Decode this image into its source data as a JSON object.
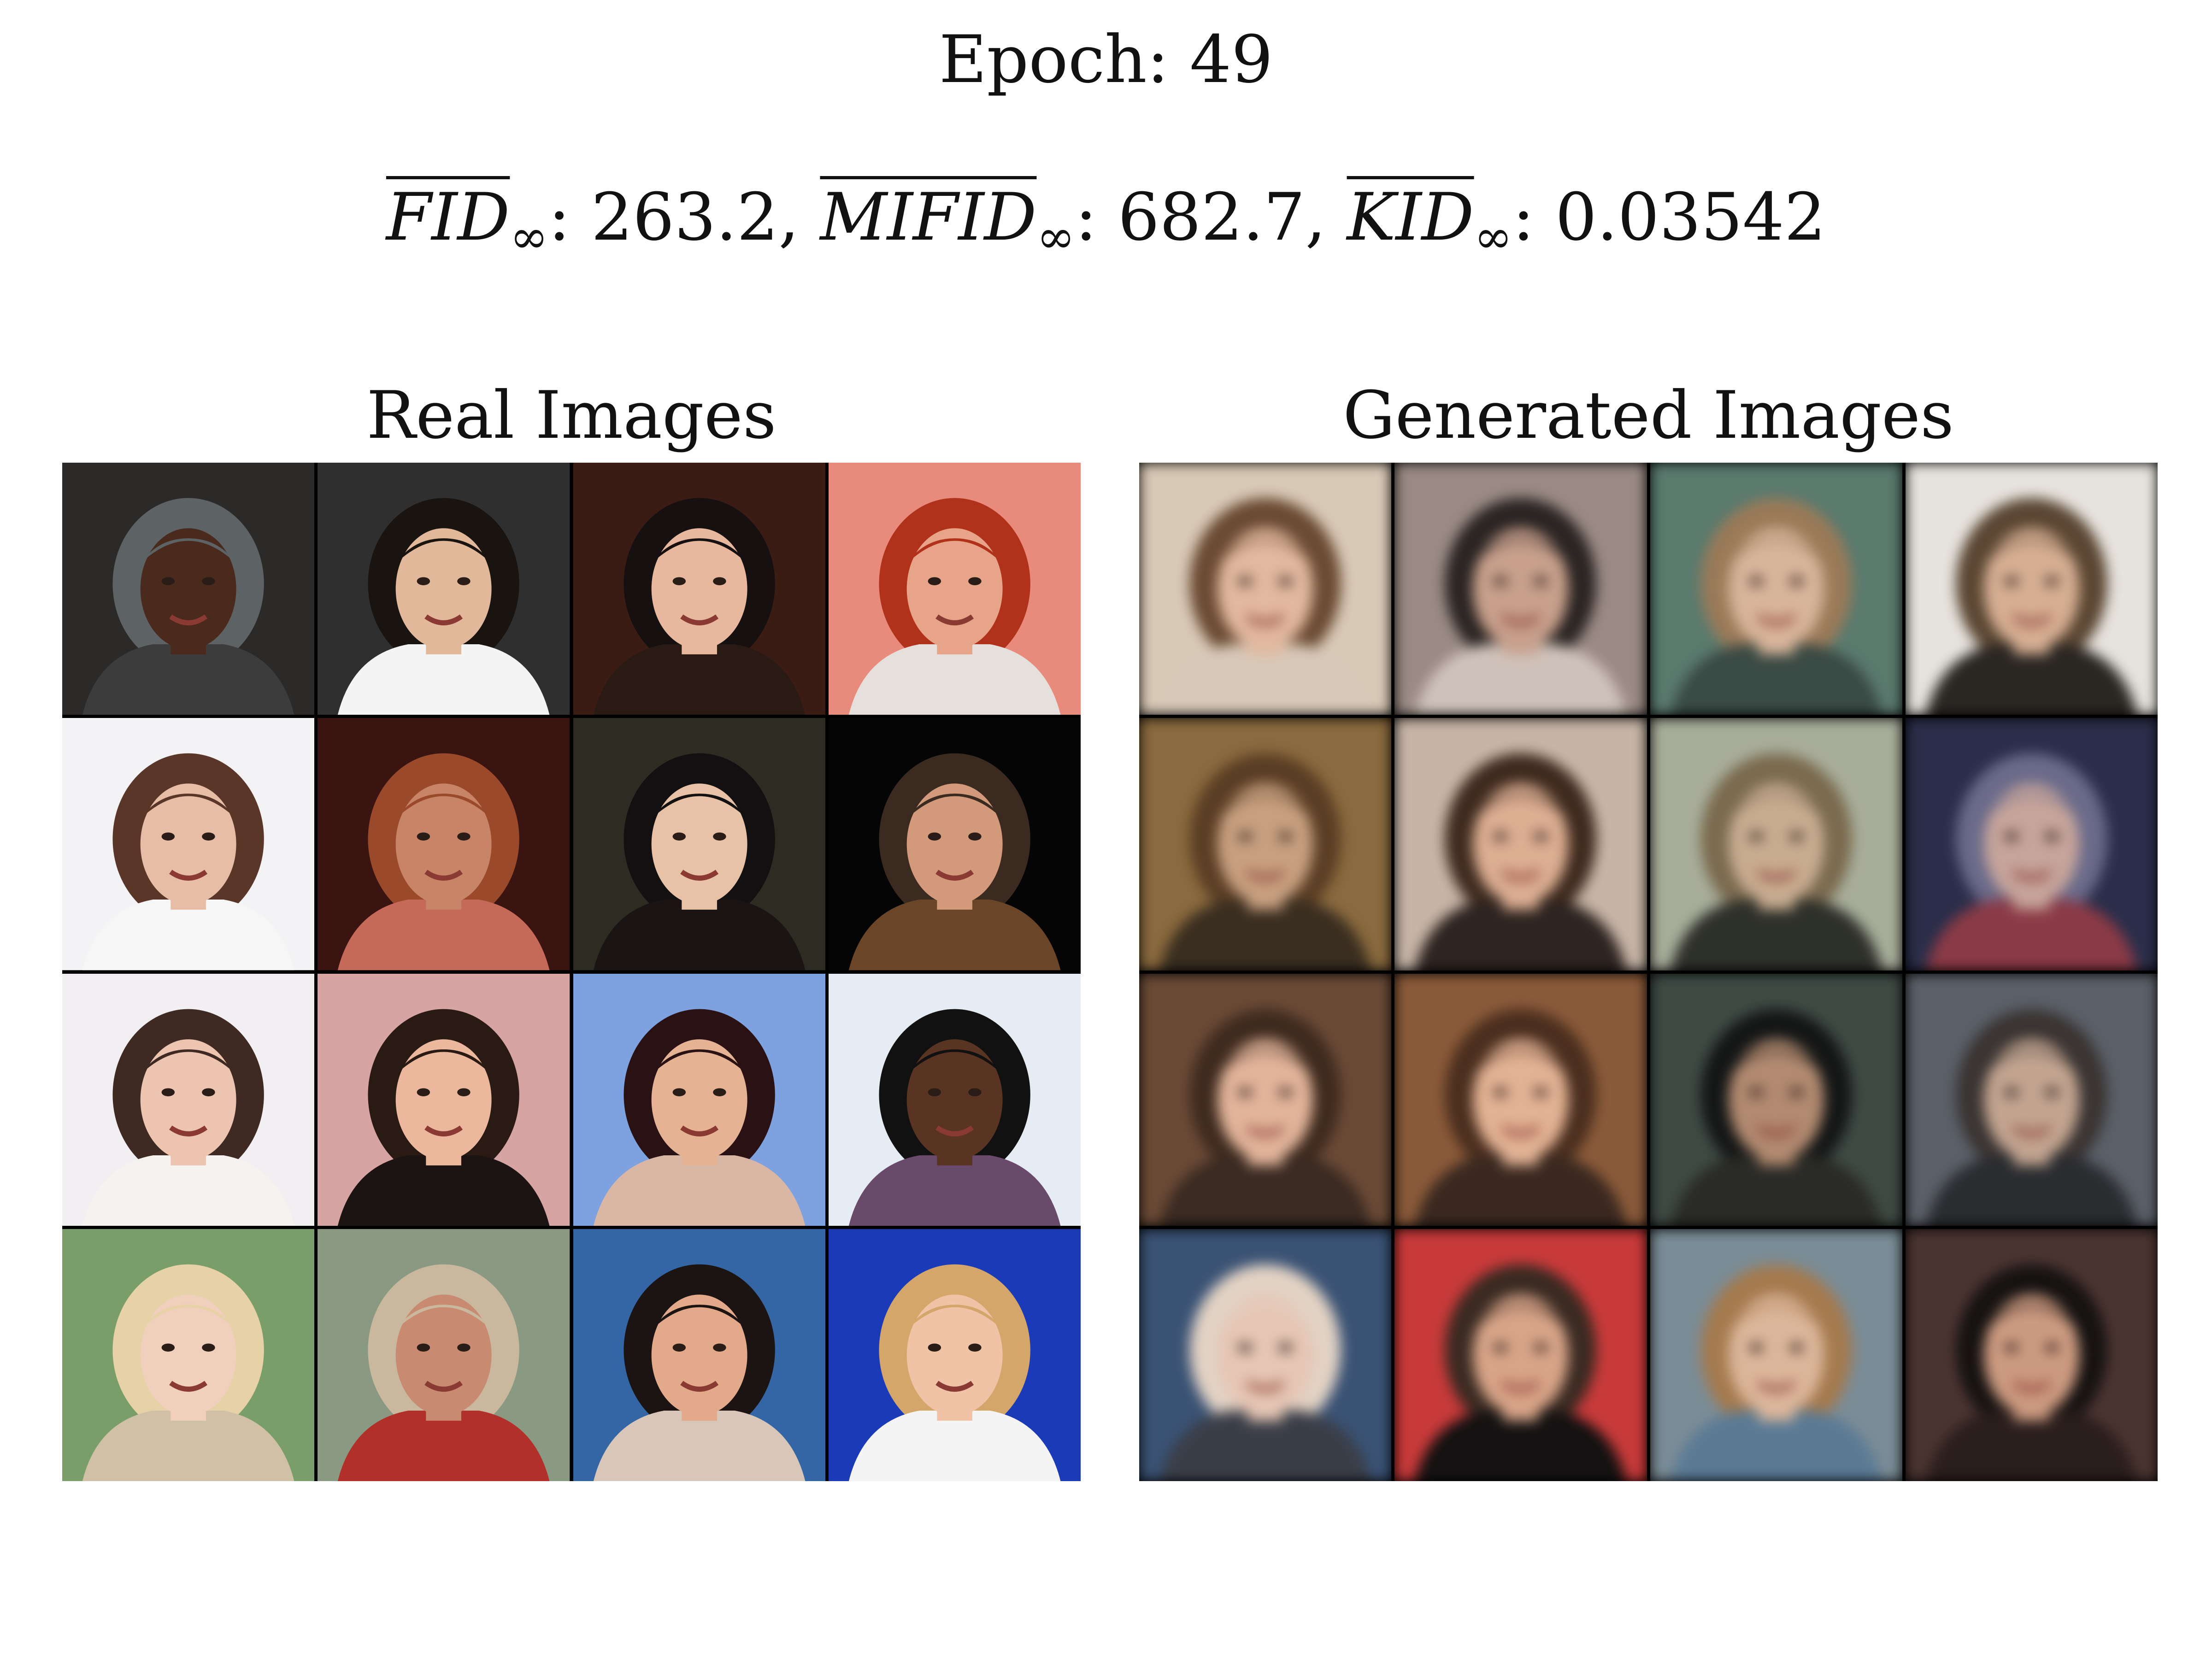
{
  "header": {
    "epoch_text": "Epoch: 49",
    "metrics": [
      {
        "name": "FID",
        "sub": "∞",
        "value": "263.2",
        "sep": ", "
      },
      {
        "name": "MIFID",
        "sub": "∞",
        "value": "682.7",
        "sep": ", "
      },
      {
        "name": "KID",
        "sub": "∞",
        "value": "0.03542",
        "sep": ""
      }
    ]
  },
  "panels": {
    "real": {
      "title": "Real Images",
      "tiles": [
        {
          "bg": "#2b2a29",
          "skin": "#4a2a1c",
          "hair": "#5d6265",
          "shirt": "#3c3c3c"
        },
        {
          "bg": "#2f2f2f",
          "skin": "#e2b89a",
          "hair": "#1a1410",
          "shirt": "#f4f4f4"
        },
        {
          "bg": "#3a1c14",
          "skin": "#e7b89e",
          "hair": "#161010",
          "shirt": "#2a1a14"
        },
        {
          "bg": "#e98b7c",
          "skin": "#e7a489",
          "hair": "#b1321a",
          "shirt": "#e6e0dc"
        },
        {
          "bg": "#f3f3f6",
          "skin": "#e8bda5",
          "hair": "#5a3628",
          "shirt": "#f6f6f6"
        },
        {
          "bg": "#3a1410",
          "skin": "#c88466",
          "hair": "#9a4a2a",
          "shirt": "#c56a58"
        },
        {
          "bg": "#2c2c22",
          "skin": "#e8c2a6",
          "hair": "#121010",
          "shirt": "#1a1414"
        },
        {
          "bg": "#050505",
          "skin": "#d29a7a",
          "hair": "#3a2a20",
          "shirt": "#6a4528"
        },
        {
          "bg": "#f2eff2",
          "skin": "#ecc4b0",
          "hair": "#3e2a22",
          "shirt": "#f6f2f0"
        },
        {
          "bg": "#d6a4a2",
          "skin": "#ebb89e",
          "hair": "#2a1a14",
          "shirt": "#1c1412"
        },
        {
          "bg": "#7ea2e0",
          "skin": "#e6b294",
          "hair": "#2a1214",
          "shirt": "#d9b7a4"
        },
        {
          "bg": "#e6ecf4",
          "skin": "#5a3422",
          "hair": "#111111",
          "shirt": "#6a4a6a"
        },
        {
          "bg": "#7a9e6a",
          "skin": "#f0d0bc",
          "hair": "#e6d2a6",
          "shirt": "#cfc0a6"
        },
        {
          "bg": "#8a9a82",
          "skin": "#c88a70",
          "hair": "#c9b89e",
          "shirt": "#b2302a"
        },
        {
          "bg": "#3466a6",
          "skin": "#e2aa8a",
          "hair": "#1c1412",
          "shirt": "#d8c6b8"
        },
        {
          "bg": "#1a3ab8",
          "skin": "#f0c2a6",
          "hair": "#d4a66a",
          "shirt": "#f4f4f4"
        }
      ]
    },
    "generated": {
      "title": "Generated Images",
      "tiles": [
        {
          "bg": "#d8c8b6",
          "skin": "#e2b89e",
          "hair": "#6a4a32",
          "shirt": "#d8c8b8"
        },
        {
          "bg": "#9a8a84",
          "skin": "#c8a08c",
          "hair": "#2a2422",
          "shirt": "#cfc2ba"
        },
        {
          "bg": "#5a7a6e",
          "skin": "#d8b49a",
          "hair": "#9a7a58",
          "shirt": "#3a4a44"
        },
        {
          "bg": "#e6e2dc",
          "skin": "#d6ae92",
          "hair": "#5a4632",
          "shirt": "#2a2622"
        },
        {
          "bg": "#8a6a3e",
          "skin": "#c8a080",
          "hair": "#5a3e24",
          "shirt": "#3a2e20"
        },
        {
          "bg": "#c6b4a6",
          "skin": "#dcae92",
          "hair": "#3e2a1e",
          "shirt": "#2e2420"
        },
        {
          "bg": "#a8ad9a",
          "skin": "#c8ac90",
          "hair": "#7a6a4e",
          "shirt": "#2e302a"
        },
        {
          "bg": "#2a2e4a",
          "skin": "#c6a49a",
          "hair": "#6a6a8a",
          "shirt": "#8a3a46"
        },
        {
          "bg": "#6a4a36",
          "skin": "#e2b49a",
          "hair": "#3e2a1e",
          "shirt": "#3a2a22"
        },
        {
          "bg": "#8a5a3a",
          "skin": "#e2b294",
          "hair": "#4a2e1e",
          "shirt": "#3a2820"
        },
        {
          "bg": "#3e4a44",
          "skin": "#b28a70",
          "hair": "#141616",
          "shirt": "#2a2a26"
        },
        {
          "bg": "#5a6068",
          "skin": "#c2a490",
          "hair": "#3a3432",
          "shirt": "#2a2c30"
        },
        {
          "bg": "#3a5274",
          "skin": "#e6c6b4",
          "hair": "#e2d2c4",
          "shirt": "#3a3e48"
        },
        {
          "bg": "#c83a3a",
          "skin": "#d8a488",
          "hair": "#3a2a22",
          "shirt": "#141212"
        },
        {
          "bg": "#7a8c96",
          "skin": "#dcb69a",
          "hair": "#a47a4e",
          "shirt": "#5a7a94"
        },
        {
          "bg": "#4a3430",
          "skin": "#cc9a80",
          "hair": "#161212",
          "shirt": "#2a1e1c"
        }
      ]
    }
  }
}
